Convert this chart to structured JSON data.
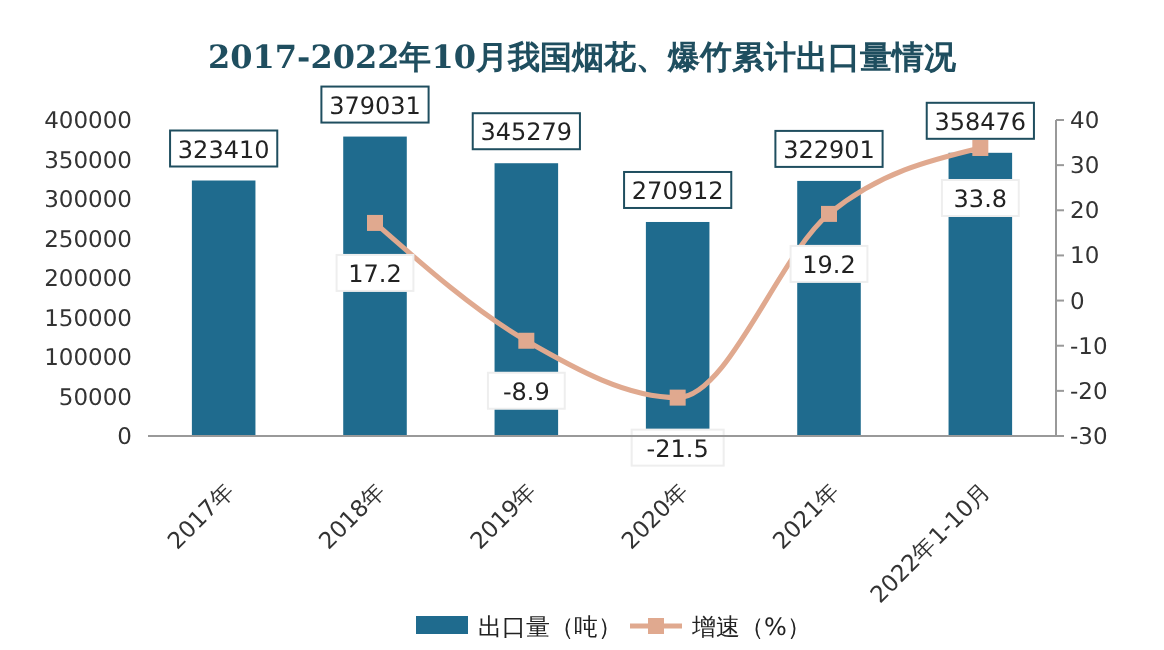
{
  "chart_data": {
    "type": "bar",
    "title": "2017-2022年10月我国烟花、爆竹累计出口量情况",
    "categories": [
      "2017年",
      "2018年",
      "2019年",
      "2020年",
      "2021年",
      "2022年1-10月"
    ],
    "series": [
      {
        "name": "出口量（吨）",
        "color": "#1f6b8e",
        "values": [
          323410,
          379031,
          345279,
          270912,
          322901,
          358476
        ]
      },
      {
        "name": "增速（%）",
        "type": "line",
        "axis": "y2",
        "color": "#e0a98f",
        "marker": "square",
        "values": [
          null,
          17.2,
          -8.9,
          -21.5,
          19.2,
          33.8
        ]
      }
    ],
    "ylim": [
      0,
      400000
    ],
    "yticks": [
      0,
      50000,
      100000,
      150000,
      200000,
      250000,
      300000,
      350000,
      400000
    ],
    "y2lim": [
      -30,
      40
    ],
    "y2ticks": [
      -30,
      -20,
      -10,
      0,
      10,
      20,
      30,
      40
    ],
    "data_labels": true,
    "legend": "bottom",
    "grid": false
  }
}
